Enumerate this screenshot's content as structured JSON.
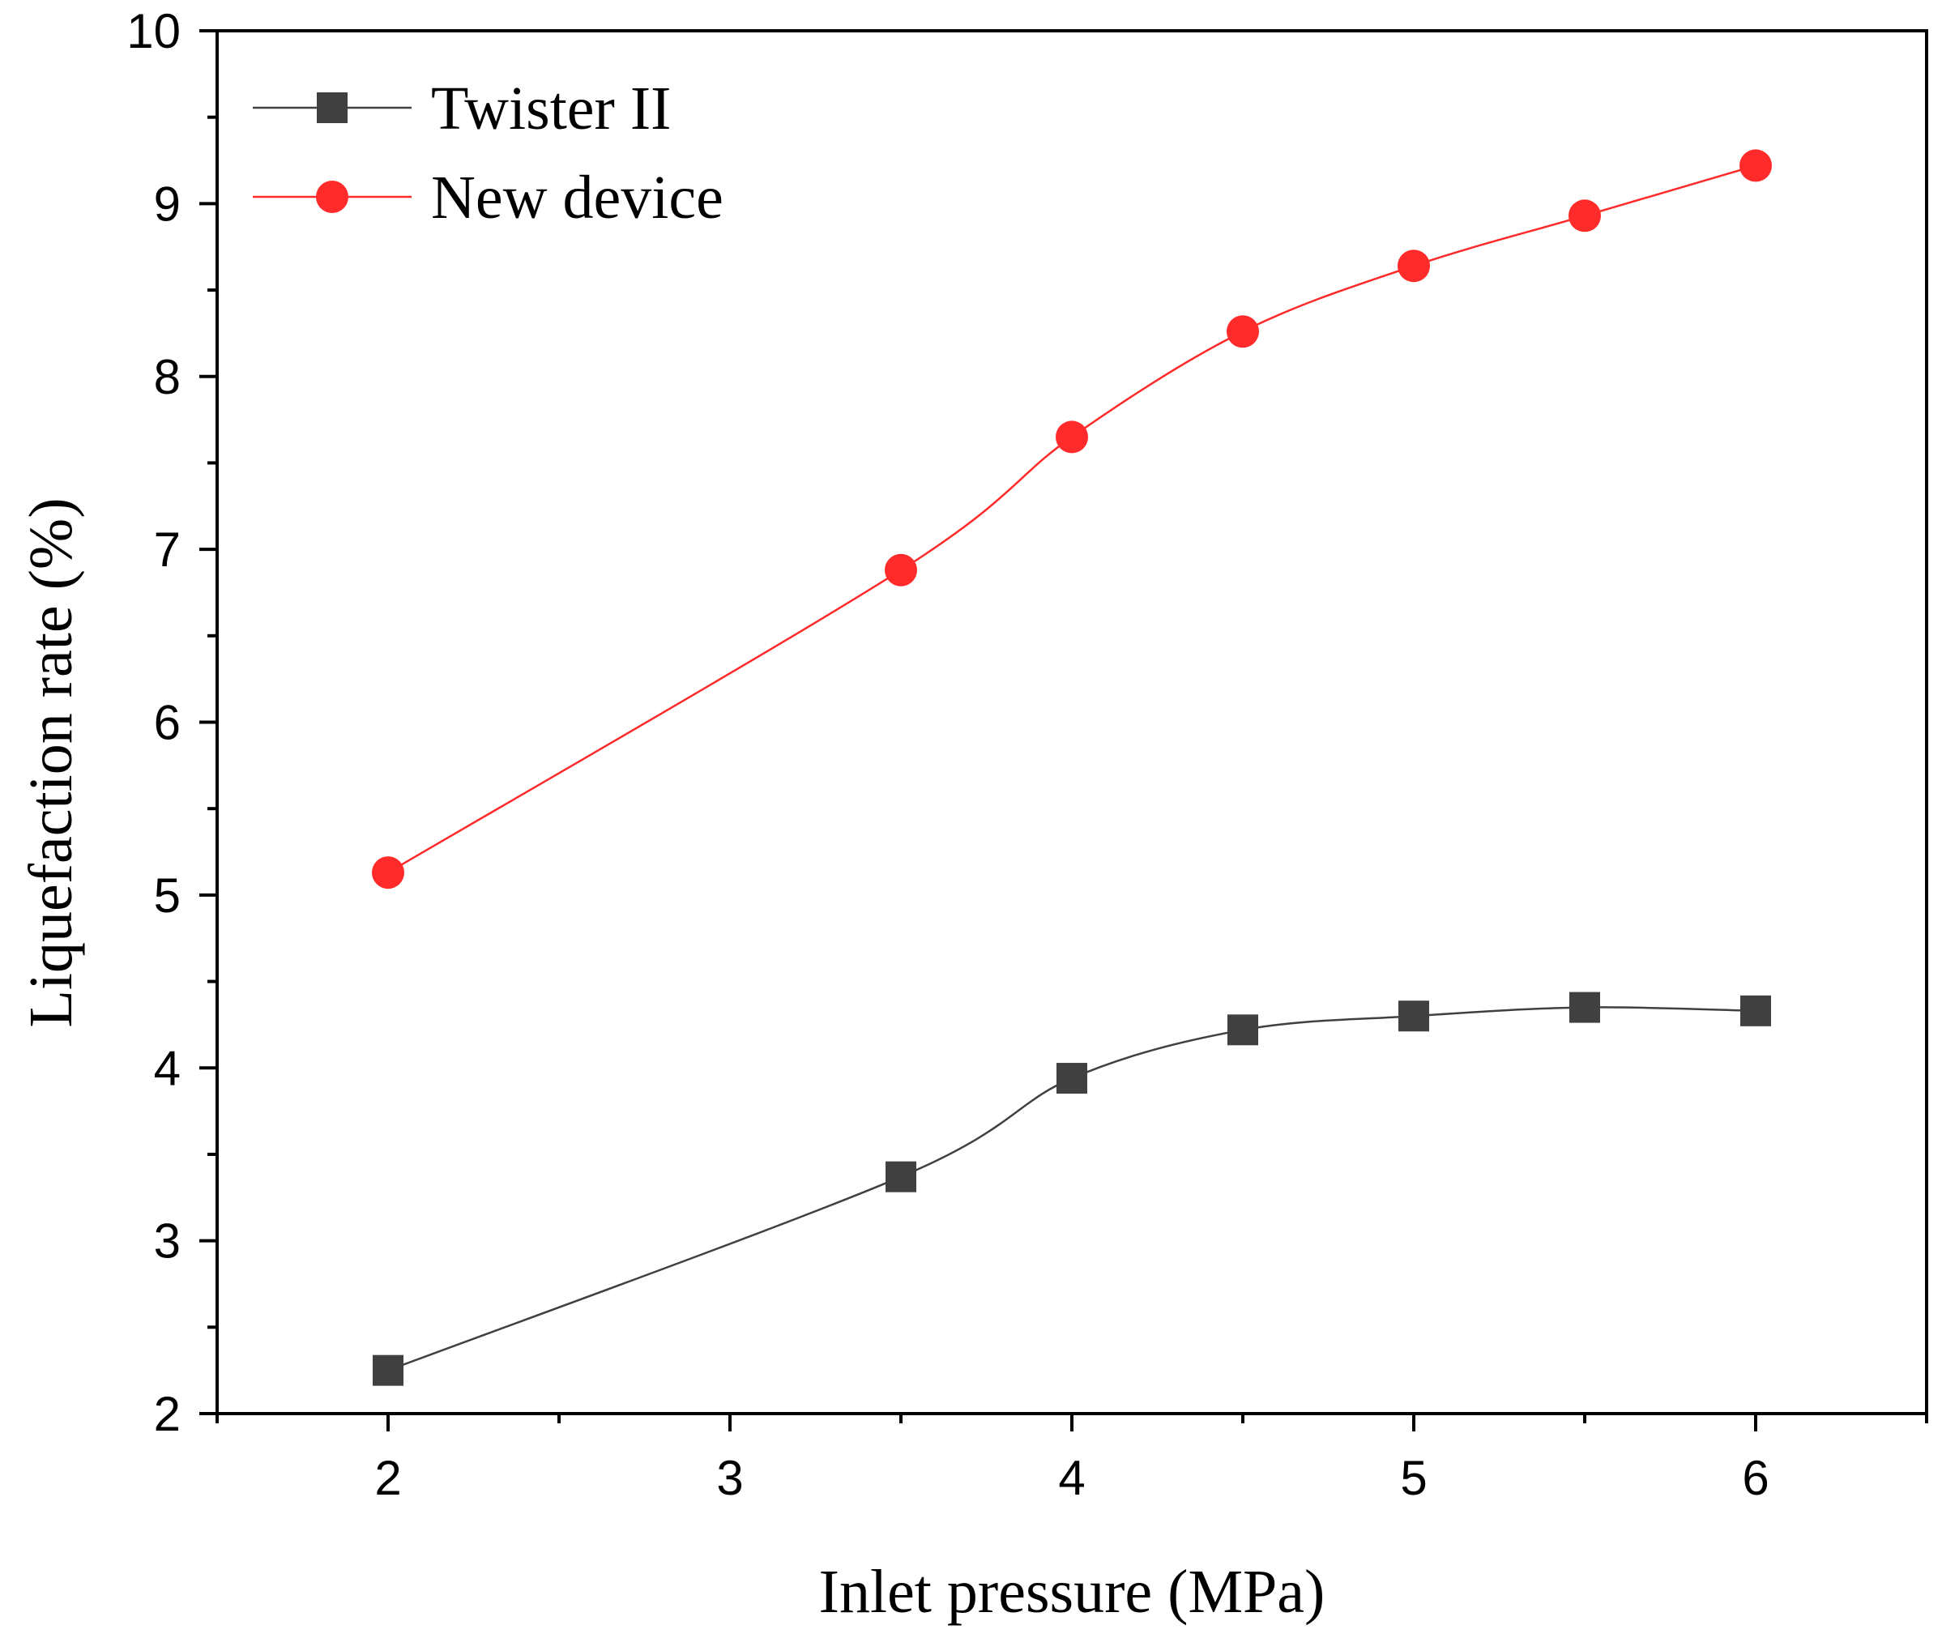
{
  "chart_data": {
    "type": "line",
    "title": "",
    "xlabel": "Inlet pressure (MPa)",
    "ylabel": "Liquefaction rate (%)",
    "xlim": [
      1.5,
      6.5
    ],
    "ylim": [
      2,
      10
    ],
    "xticks": [
      2,
      3,
      4,
      5,
      6
    ],
    "yticks": [
      2,
      3,
      4,
      5,
      6,
      7,
      8,
      9,
      10
    ],
    "legend_position": "top-left",
    "series": [
      {
        "name": "Twister II",
        "color": "#404040",
        "marker": "square",
        "x": [
          2,
          3.5,
          4,
          4.5,
          5,
          5.5,
          6
        ],
        "y": [
          2.25,
          3.37,
          3.94,
          4.22,
          4.3,
          4.35,
          4.33
        ]
      },
      {
        "name": "New device",
        "color": "#ff2a2a",
        "marker": "circle",
        "x": [
          2,
          3.5,
          4,
          4.5,
          5,
          5.5,
          6
        ],
        "y": [
          5.13,
          6.88,
          7.65,
          8.26,
          8.64,
          8.93,
          9.22
        ]
      }
    ]
  }
}
